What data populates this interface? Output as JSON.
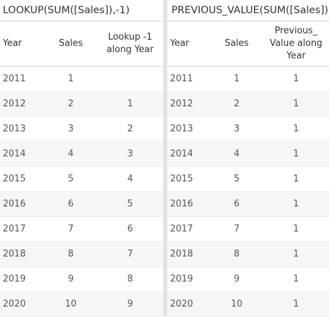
{
  "left": {
    "title": "LOOKUP(SUM([Sales]),-1)",
    "headers": {
      "year": "Year",
      "sales": "Sales",
      "calc_line1": "Lookup -1",
      "calc_line2": "along Year"
    },
    "rows": [
      {
        "year": "2011",
        "sales": "1",
        "calc": ""
      },
      {
        "year": "2012",
        "sales": "2",
        "calc": "1"
      },
      {
        "year": "2013",
        "sales": "3",
        "calc": "2"
      },
      {
        "year": "2014",
        "sales": "4",
        "calc": "3"
      },
      {
        "year": "2015",
        "sales": "5",
        "calc": "4"
      },
      {
        "year": "2016",
        "sales": "6",
        "calc": "5"
      },
      {
        "year": "2017",
        "sales": "7",
        "calc": "6"
      },
      {
        "year": "2018",
        "sales": "8",
        "calc": "7"
      },
      {
        "year": "2019",
        "sales": "9",
        "calc": "8"
      },
      {
        "year": "2020",
        "sales": "10",
        "calc": "9"
      }
    ]
  },
  "right": {
    "title": "PREVIOUS_VALUE(SUM([Sales])",
    "headers": {
      "year": "Year",
      "sales": "Sales",
      "calc_line1": "Previous_",
      "calc_line2": "Value along",
      "calc_line3": "Year"
    },
    "rows": [
      {
        "year": "2011",
        "sales": "1",
        "calc": "1"
      },
      {
        "year": "2012",
        "sales": "2",
        "calc": "1"
      },
      {
        "year": "2013",
        "sales": "3",
        "calc": "1"
      },
      {
        "year": "2014",
        "sales": "4",
        "calc": "1"
      },
      {
        "year": "2015",
        "sales": "5",
        "calc": "1"
      },
      {
        "year": "2016",
        "sales": "6",
        "calc": "1"
      },
      {
        "year": "2017",
        "sales": "7",
        "calc": "1"
      },
      {
        "year": "2018",
        "sales": "8",
        "calc": "1"
      },
      {
        "year": "2019",
        "sales": "9",
        "calc": "1"
      },
      {
        "year": "2020",
        "sales": "10",
        "calc": "1"
      }
    ]
  }
}
